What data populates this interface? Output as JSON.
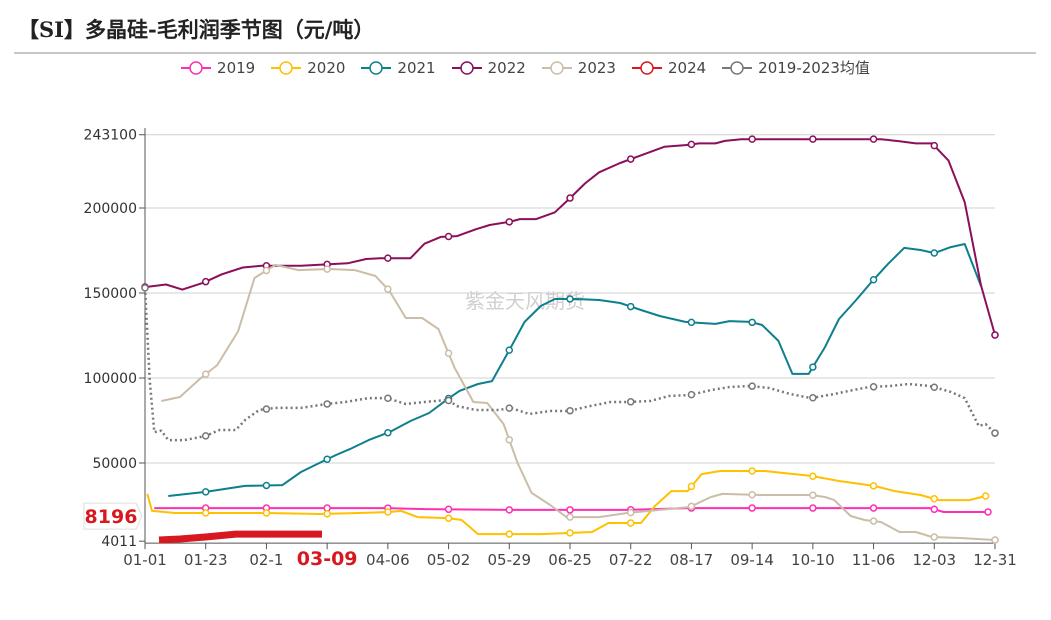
{
  "title": "【SI】多晶硅-毛利润季节图（元/吨）",
  "watermark": "紫金天风期货",
  "chart_data": {
    "type": "line",
    "title": "【SI】多晶硅-毛利润季节图（元/吨）",
    "xlabel": "",
    "ylabel": "",
    "x_unit": "day of year",
    "xlim": [
      0,
      365
    ],
    "ylim": [
      4011,
      243100
    ],
    "y_ticks": [
      "243100",
      "200000",
      "150000",
      "100000",
      "50000",
      "4011"
    ],
    "y_tick_values": [
      243100,
      200000,
      150000,
      100000,
      50000,
      4011
    ],
    "x_ticks": [
      "01-01",
      "01-23",
      "02-1",
      "03-09",
      "04-06",
      "05-02",
      "05-29",
      "06-25",
      "07-22",
      "08-17",
      "09-14",
      "10-10",
      "11-06",
      "12-03",
      "12-31"
    ],
    "highlight_x_label": "03-09",
    "highlight_y_label": "8196",
    "grid": true,
    "legend_position": "top-center",
    "series": [
      {
        "name": "2019",
        "color": "#ff2fb4",
        "dashed": false,
        "points": [
          [
            4,
            23500
          ],
          [
            104,
            23500
          ],
          [
            120,
            22900
          ],
          [
            157,
            22400
          ],
          [
            207,
            22400
          ],
          [
            234,
            23500
          ],
          [
            260,
            23500
          ],
          [
            337,
            23500
          ],
          [
            343,
            21200
          ],
          [
            362,
            21200
          ]
        ]
      },
      {
        "name": "2020",
        "color": "#ffc000",
        "dashed": false,
        "points": [
          [
            1,
            31800
          ],
          [
            3,
            21800
          ],
          [
            13,
            20600
          ],
          [
            26,
            20600
          ],
          [
            52,
            20600
          ],
          [
            75,
            20000
          ],
          [
            92,
            20600
          ],
          [
            105,
            21200
          ],
          [
            110,
            21800
          ],
          [
            117,
            18200
          ],
          [
            130,
            17600
          ],
          [
            136,
            16500
          ],
          [
            143,
            8200
          ],
          [
            170,
            8200
          ],
          [
            192,
            9400
          ],
          [
            199,
            14700
          ],
          [
            213,
            14700
          ],
          [
            219,
            24700
          ],
          [
            226,
            33500
          ],
          [
            233,
            33500
          ],
          [
            239,
            43500
          ],
          [
            247,
            45300
          ],
          [
            266,
            45300
          ],
          [
            286,
            42400
          ],
          [
            298,
            39400
          ],
          [
            313,
            36500
          ],
          [
            322,
            33500
          ],
          [
            333,
            31200
          ],
          [
            341,
            28200
          ],
          [
            354,
            28200
          ],
          [
            361,
            30600
          ]
        ]
      },
      {
        "name": "2021",
        "color": "#0e7f8c",
        "dashed": false,
        "points": [
          [
            10,
            30600
          ],
          [
            26,
            33000
          ],
          [
            43,
            36500
          ],
          [
            59,
            37000
          ],
          [
            67,
            44700
          ],
          [
            74,
            49400
          ],
          [
            82,
            54700
          ],
          [
            88,
            58200
          ],
          [
            96,
            63500
          ],
          [
            105,
            68200
          ],
          [
            114,
            74700
          ],
          [
            122,
            79400
          ],
          [
            130,
            87600
          ],
          [
            135,
            92400
          ],
          [
            143,
            96500
          ],
          [
            149,
            98200
          ],
          [
            156,
            115300
          ],
          [
            163,
            133000
          ],
          [
            170,
            142400
          ],
          [
            176,
            146500
          ],
          [
            185,
            146500
          ],
          [
            195,
            145900
          ],
          [
            204,
            144100
          ],
          [
            213,
            140000
          ],
          [
            221,
            136500
          ],
          [
            232,
            133000
          ],
          [
            238,
            132400
          ],
          [
            245,
            131800
          ],
          [
            251,
            133500
          ],
          [
            260,
            133000
          ],
          [
            265,
            131200
          ],
          [
            272,
            121800
          ],
          [
            278,
            102400
          ],
          [
            285,
            102400
          ],
          [
            292,
            118200
          ],
          [
            298,
            134700
          ],
          [
            305,
            145300
          ],
          [
            312,
            156500
          ],
          [
            319,
            167000
          ],
          [
            326,
            176500
          ],
          [
            333,
            175300
          ],
          [
            339,
            173500
          ],
          [
            346,
            177000
          ],
          [
            352,
            178800
          ],
          [
            359,
            154100
          ]
        ]
      },
      {
        "name": "2022",
        "color": "#8b0f5a",
        "dashed": false,
        "points": [
          [
            0,
            153500
          ],
          [
            9,
            155000
          ],
          [
            16,
            152000
          ],
          [
            25,
            156000
          ],
          [
            33,
            161000
          ],
          [
            42,
            165000
          ],
          [
            50,
            166000
          ],
          [
            67,
            166000
          ],
          [
            87,
            167500
          ],
          [
            95,
            170000
          ],
          [
            101,
            170500
          ],
          [
            114,
            170500
          ],
          [
            120,
            179000
          ],
          [
            127,
            183000
          ],
          [
            134,
            183500
          ],
          [
            142,
            187500
          ],
          [
            148,
            190000
          ],
          [
            157,
            192000
          ],
          [
            161,
            193500
          ],
          [
            168,
            193500
          ],
          [
            176,
            197500
          ],
          [
            183,
            206500
          ],
          [
            189,
            214500
          ],
          [
            195,
            221000
          ],
          [
            204,
            226500
          ],
          [
            210,
            229500
          ],
          [
            217,
            233000
          ],
          [
            223,
            236000
          ],
          [
            232,
            237000
          ],
          [
            238,
            238000
          ],
          [
            245,
            238000
          ],
          [
            249,
            239500
          ],
          [
            256,
            240500
          ],
          [
            281,
            240500
          ],
          [
            316,
            240500
          ],
          [
            324,
            239300
          ],
          [
            331,
            238000
          ],
          [
            338,
            238000
          ],
          [
            345,
            228000
          ],
          [
            352,
            203500
          ],
          [
            359,
            154500
          ],
          [
            365,
            125300
          ]
        ]
      },
      {
        "name": "2023",
        "color": "#cbbda8",
        "dashed": false,
        "points": [
          [
            7,
            86500
          ],
          [
            15,
            88800
          ],
          [
            24,
            100000
          ],
          [
            31,
            107600
          ],
          [
            40,
            127600
          ],
          [
            47,
            158800
          ],
          [
            56,
            166500
          ],
          [
            66,
            163500
          ],
          [
            79,
            164100
          ],
          [
            90,
            163500
          ],
          [
            99,
            160000
          ],
          [
            105,
            151200
          ],
          [
            112,
            135300
          ],
          [
            119,
            135300
          ],
          [
            126,
            128800
          ],
          [
            133,
            105900
          ],
          [
            141,
            85900
          ],
          [
            147,
            85300
          ],
          [
            154,
            72900
          ],
          [
            160,
            50000
          ],
          [
            166,
            32400
          ],
          [
            174,
            25300
          ],
          [
            181,
            18200
          ],
          [
            195,
            18200
          ],
          [
            207,
            20600
          ],
          [
            221,
            22400
          ],
          [
            234,
            24100
          ],
          [
            243,
            30000
          ],
          [
            248,
            31800
          ],
          [
            264,
            31200
          ],
          [
            286,
            31200
          ],
          [
            292,
            30000
          ],
          [
            296,
            28200
          ],
          [
            303,
            18800
          ],
          [
            309,
            16500
          ],
          [
            316,
            15300
          ],
          [
            324,
            9400
          ],
          [
            331,
            9400
          ],
          [
            338,
            6500
          ],
          [
            350,
            5900
          ],
          [
            365,
            4700
          ]
        ]
      },
      {
        "name": "2024",
        "color": "#d7191f",
        "dashed": false,
        "thick": true,
        "points": [
          [
            6,
            4700
          ],
          [
            15,
            5300
          ],
          [
            26,
            6500
          ],
          [
            39,
            8200
          ],
          [
            64,
            8200
          ],
          [
            76,
            8196
          ]
        ]
      },
      {
        "name": "2019-2023均值",
        "color": "#777777",
        "dashed": true,
        "points": [
          [
            0,
            153000
          ],
          [
            2,
            98800
          ],
          [
            4,
            68200
          ],
          [
            7,
            69000
          ],
          [
            10,
            63500
          ],
          [
            17,
            63500
          ],
          [
            26,
            65900
          ],
          [
            32,
            69400
          ],
          [
            39,
            69400
          ],
          [
            43,
            75300
          ],
          [
            49,
            81200
          ],
          [
            56,
            82400
          ],
          [
            67,
            82400
          ],
          [
            78,
            84700
          ],
          [
            86,
            85900
          ],
          [
            96,
            88200
          ],
          [
            104,
            88200
          ],
          [
            112,
            84700
          ],
          [
            120,
            85900
          ],
          [
            130,
            87100
          ],
          [
            134,
            83500
          ],
          [
            142,
            81200
          ],
          [
            152,
            81200
          ],
          [
            157,
            82400
          ],
          [
            165,
            78800
          ],
          [
            174,
            80600
          ],
          [
            182,
            80600
          ],
          [
            191,
            83500
          ],
          [
            200,
            85900
          ],
          [
            207,
            85900
          ],
          [
            217,
            86500
          ],
          [
            225,
            89400
          ],
          [
            234,
            90000
          ],
          [
            243,
            92900
          ],
          [
            251,
            94700
          ],
          [
            260,
            95300
          ],
          [
            268,
            94100
          ],
          [
            277,
            90600
          ],
          [
            286,
            88200
          ],
          [
            296,
            90600
          ],
          [
            304,
            92900
          ],
          [
            311,
            94700
          ],
          [
            320,
            95300
          ],
          [
            328,
            96500
          ],
          [
            337,
            95300
          ],
          [
            346,
            91800
          ],
          [
            352,
            88200
          ],
          [
            358,
            71800
          ],
          [
            361,
            72900
          ],
          [
            365,
            67600
          ]
        ]
      }
    ]
  }
}
